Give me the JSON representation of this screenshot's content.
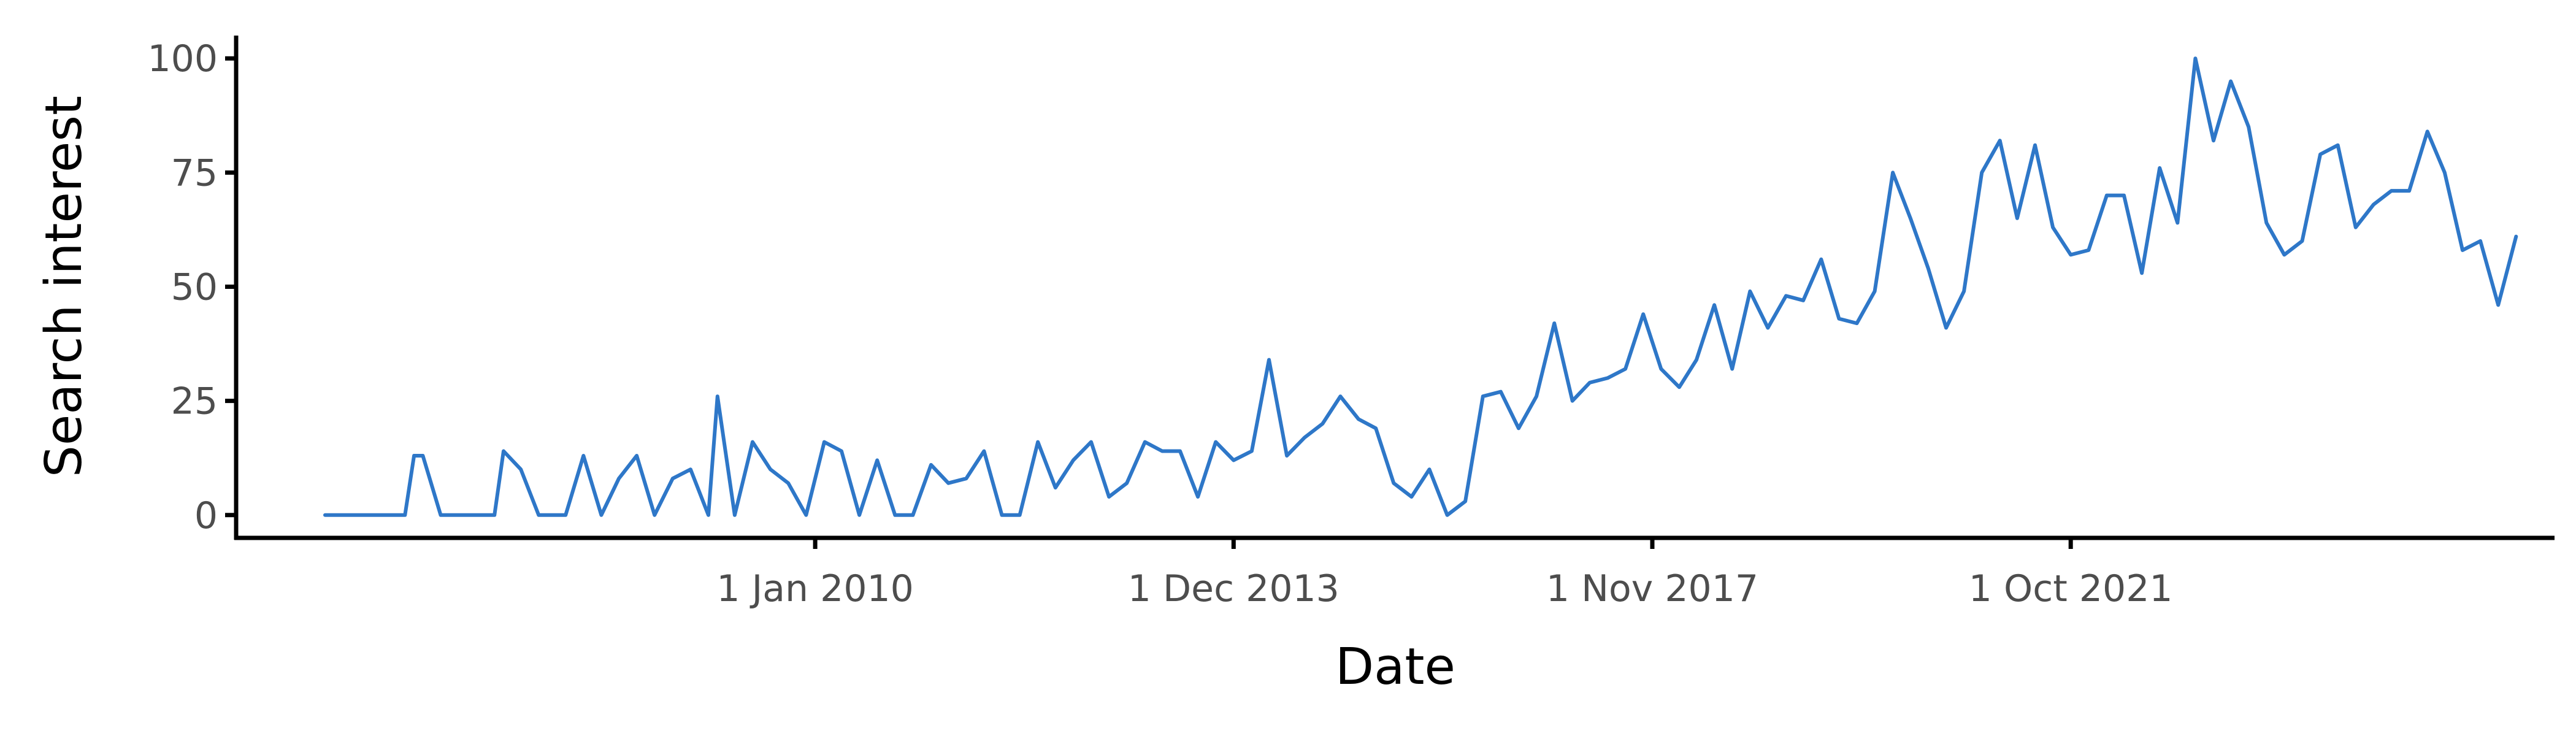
{
  "chart_data": {
    "type": "line",
    "title": "",
    "xlabel": "Date",
    "ylabel": "Search interest",
    "grid": false,
    "legend": "none",
    "line_color": "#2e77c8",
    "xlim": [
      "2004-08-01",
      "2026-04-01"
    ],
    "ylim": [
      -5,
      105
    ],
    "x_ticks": [
      {
        "date": "2010-01-01",
        "label": "1 Jan 2010"
      },
      {
        "date": "2013-12-01",
        "label": "1 Dec 2013"
      },
      {
        "date": "2017-11-01",
        "label": "1 Nov 2017"
      },
      {
        "date": "2021-10-01",
        "label": "1 Oct 2021"
      }
    ],
    "y_ticks": [
      0,
      25,
      50,
      75,
      100
    ],
    "series": [
      {
        "points": [
          [
            "2005-06-01",
            0
          ],
          [
            "2005-09-01",
            0
          ],
          [
            "2005-12-01",
            0
          ],
          [
            "2006-03-01",
            0
          ],
          [
            "2006-04-01",
            13
          ],
          [
            "2006-05-01",
            13
          ],
          [
            "2006-07-01",
            0
          ],
          [
            "2006-10-01",
            0
          ],
          [
            "2007-01-01",
            0
          ],
          [
            "2007-02-01",
            14
          ],
          [
            "2007-04-01",
            10
          ],
          [
            "2007-06-01",
            0
          ],
          [
            "2007-09-01",
            0
          ],
          [
            "2007-11-01",
            13
          ],
          [
            "2008-01-01",
            0
          ],
          [
            "2008-03-01",
            8
          ],
          [
            "2008-05-01",
            13
          ],
          [
            "2008-07-01",
            0
          ],
          [
            "2008-09-01",
            8
          ],
          [
            "2008-11-01",
            10
          ],
          [
            "2009-01-01",
            0
          ],
          [
            "2009-02-01",
            26
          ],
          [
            "2009-04-01",
            0
          ],
          [
            "2009-06-01",
            16
          ],
          [
            "2009-08-01",
            10
          ],
          [
            "2009-10-01",
            7
          ],
          [
            "2009-12-01",
            0
          ],
          [
            "2010-02-01",
            16
          ],
          [
            "2010-04-01",
            14
          ],
          [
            "2010-06-01",
            0
          ],
          [
            "2010-08-01",
            12
          ],
          [
            "2010-10-01",
            0
          ],
          [
            "2010-12-01",
            0
          ],
          [
            "2011-02-01",
            11
          ],
          [
            "2011-04-01",
            7
          ],
          [
            "2011-06-01",
            8
          ],
          [
            "2011-08-01",
            14
          ],
          [
            "2011-10-01",
            0
          ],
          [
            "2011-12-01",
            0
          ],
          [
            "2012-02-01",
            16
          ],
          [
            "2012-04-01",
            6
          ],
          [
            "2012-06-01",
            12
          ],
          [
            "2012-08-01",
            16
          ],
          [
            "2012-10-01",
            4
          ],
          [
            "2012-12-01",
            7
          ],
          [
            "2013-02-01",
            16
          ],
          [
            "2013-04-01",
            14
          ],
          [
            "2013-06-01",
            14
          ],
          [
            "2013-08-01",
            4
          ],
          [
            "2013-10-01",
            16
          ],
          [
            "2013-12-01",
            12
          ],
          [
            "2014-02-01",
            14
          ],
          [
            "2014-04-01",
            34
          ],
          [
            "2014-06-01",
            13
          ],
          [
            "2014-08-01",
            17
          ],
          [
            "2014-10-01",
            20
          ],
          [
            "2014-12-01",
            26
          ],
          [
            "2015-02-01",
            21
          ],
          [
            "2015-04-01",
            19
          ],
          [
            "2015-06-01",
            7
          ],
          [
            "2015-08-01",
            4
          ],
          [
            "2015-10-01",
            10
          ],
          [
            "2015-12-01",
            0
          ],
          [
            "2016-02-01",
            3
          ],
          [
            "2016-04-01",
            26
          ],
          [
            "2016-06-01",
            27
          ],
          [
            "2016-08-01",
            19
          ],
          [
            "2016-10-01",
            26
          ],
          [
            "2016-12-01",
            42
          ],
          [
            "2017-02-01",
            25
          ],
          [
            "2017-04-01",
            29
          ],
          [
            "2017-06-01",
            30
          ],
          [
            "2017-08-01",
            32
          ],
          [
            "2017-10-01",
            44
          ],
          [
            "2017-12-01",
            32
          ],
          [
            "2018-02-01",
            28
          ],
          [
            "2018-04-01",
            34
          ],
          [
            "2018-06-01",
            46
          ],
          [
            "2018-08-01",
            32
          ],
          [
            "2018-10-01",
            49
          ],
          [
            "2018-12-01",
            41
          ],
          [
            "2019-02-01",
            48
          ],
          [
            "2019-04-01",
            47
          ],
          [
            "2019-06-01",
            56
          ],
          [
            "2019-08-01",
            43
          ],
          [
            "2019-10-01",
            42
          ],
          [
            "2019-12-01",
            49
          ],
          [
            "2020-02-01",
            75
          ],
          [
            "2020-04-01",
            65
          ],
          [
            "2020-06-01",
            54
          ],
          [
            "2020-08-01",
            41
          ],
          [
            "2020-10-01",
            49
          ],
          [
            "2020-12-01",
            75
          ],
          [
            "2021-02-01",
            82
          ],
          [
            "2021-04-01",
            65
          ],
          [
            "2021-06-01",
            81
          ],
          [
            "2021-08-01",
            63
          ],
          [
            "2021-10-01",
            57
          ],
          [
            "2021-12-01",
            58
          ],
          [
            "2022-02-01",
            70
          ],
          [
            "2022-04-01",
            70
          ],
          [
            "2022-06-01",
            53
          ],
          [
            "2022-08-01",
            76
          ],
          [
            "2022-10-01",
            64
          ],
          [
            "2022-12-01",
            100
          ],
          [
            "2023-02-01",
            82
          ],
          [
            "2023-04-01",
            95
          ],
          [
            "2023-06-01",
            85
          ],
          [
            "2023-08-01",
            64
          ],
          [
            "2023-10-01",
            57
          ],
          [
            "2023-12-01",
            60
          ],
          [
            "2024-02-01",
            79
          ],
          [
            "2024-04-01",
            81
          ],
          [
            "2024-06-01",
            63
          ],
          [
            "2024-08-01",
            68
          ],
          [
            "2024-10-01",
            71
          ],
          [
            "2024-12-01",
            71
          ],
          [
            "2025-02-01",
            84
          ],
          [
            "2025-04-01",
            75
          ],
          [
            "2025-06-01",
            58
          ],
          [
            "2025-08-01",
            60
          ],
          [
            "2025-10-01",
            46
          ],
          [
            "2025-12-01",
            61
          ]
        ]
      }
    ]
  }
}
